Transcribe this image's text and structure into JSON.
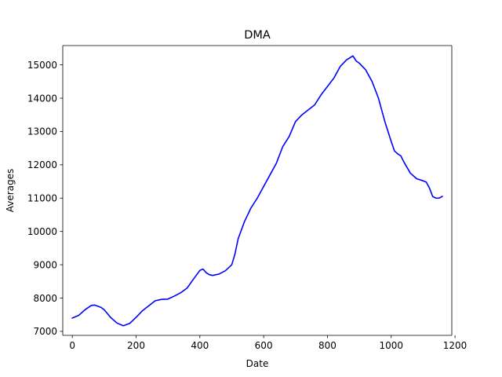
{
  "chart_data": {
    "type": "line",
    "title": "DMA",
    "xlabel": "Date",
    "ylabel": "Averages",
    "xlim": [
      -30,
      1190
    ],
    "ylim": [
      6880,
      15580
    ],
    "xticks": [
      0,
      200,
      400,
      600,
      800,
      1000,
      1200
    ],
    "yticks": [
      7000,
      8000,
      9000,
      10000,
      11000,
      12000,
      13000,
      14000,
      15000
    ],
    "grid": false,
    "legend": "none",
    "series": [
      {
        "name": "DMA",
        "color": "#0000ff",
        "x": [
          0,
          20,
          40,
          60,
          70,
          90,
          100,
          120,
          140,
          160,
          180,
          200,
          220,
          240,
          260,
          280,
          300,
          320,
          340,
          360,
          380,
          400,
          410,
          420,
          430,
          440,
          460,
          480,
          500,
          510,
          520,
          540,
          560,
          570,
          580,
          600,
          620,
          640,
          650,
          660,
          680,
          700,
          720,
          740,
          760,
          780,
          800,
          820,
          840,
          860,
          880,
          890,
          900,
          920,
          940,
          960,
          980,
          1000,
          1010,
          1020,
          1030,
          1040,
          1060,
          1080,
          1100,
          1110,
          1120,
          1130,
          1140,
          1150,
          1160
        ],
        "y": [
          7400,
          7480,
          7650,
          7780,
          7790,
          7720,
          7650,
          7420,
          7250,
          7170,
          7240,
          7420,
          7620,
          7770,
          7920,
          7960,
          7970,
          8060,
          8160,
          8300,
          8570,
          8830,
          8870,
          8760,
          8700,
          8680,
          8720,
          8820,
          9000,
          9320,
          9780,
          10300,
          10700,
          10850,
          11000,
          11350,
          11700,
          12050,
          12300,
          12550,
          12850,
          13300,
          13500,
          13650,
          13800,
          14100,
          14350,
          14600,
          14950,
          15150,
          15270,
          15120,
          15050,
          14850,
          14500,
          14000,
          13300,
          12700,
          12420,
          12330,
          12270,
          12080,
          11750,
          11580,
          11520,
          11480,
          11300,
          11050,
          11000,
          11000,
          11050
        ]
      }
    ]
  }
}
